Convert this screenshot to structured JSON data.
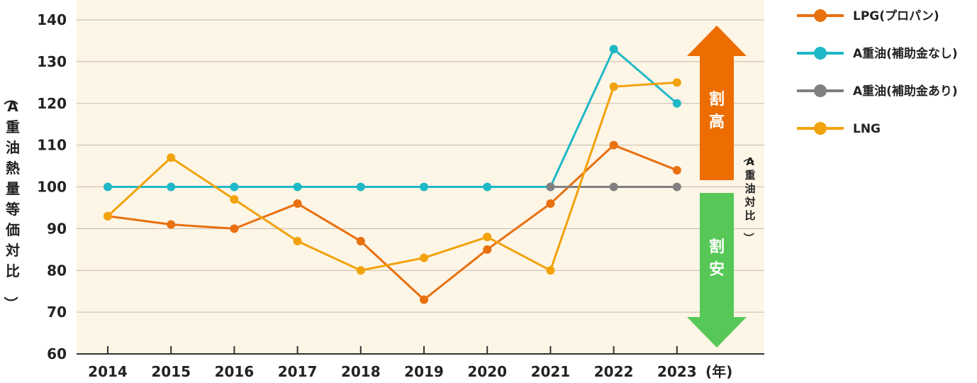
{
  "chart_data": {
    "type": "line",
    "x": [
      "2014",
      "2015",
      "2016",
      "2017",
      "2018",
      "2019",
      "2020",
      "2021",
      "2022",
      "2023"
    ],
    "x_unit": "(年)",
    "ylabel": "（A重油熱量等価対比）",
    "yticks": [
      60,
      70,
      80,
      90,
      100,
      110,
      120,
      130,
      140
    ],
    "ylim": [
      60,
      145
    ],
    "grid": true,
    "legend_position": "right",
    "series": [
      {
        "name": "LPG(プロパン)",
        "color": "#E8700F",
        "values": [
          93,
          91,
          90,
          96,
          87,
          73,
          85,
          96,
          110,
          104
        ]
      },
      {
        "name": "A重油(補助金なし)",
        "color": "#1FB8C6",
        "values": [
          100,
          100,
          100,
          100,
          100,
          100,
          100,
          100,
          133,
          120
        ]
      },
      {
        "name": "A重油(補助金あり)",
        "color": "#808080",
        "values": [
          null,
          null,
          null,
          null,
          null,
          null,
          null,
          100,
          100,
          100
        ]
      },
      {
        "name": "LNG",
        "color": "#F2A20C",
        "values": [
          93,
          107,
          97,
          87,
          80,
          83,
          88,
          80,
          124,
          125
        ]
      }
    ],
    "annotations": {
      "up_label": "割高",
      "down_label": "割安",
      "side_label": "（A重油対比）"
    }
  }
}
